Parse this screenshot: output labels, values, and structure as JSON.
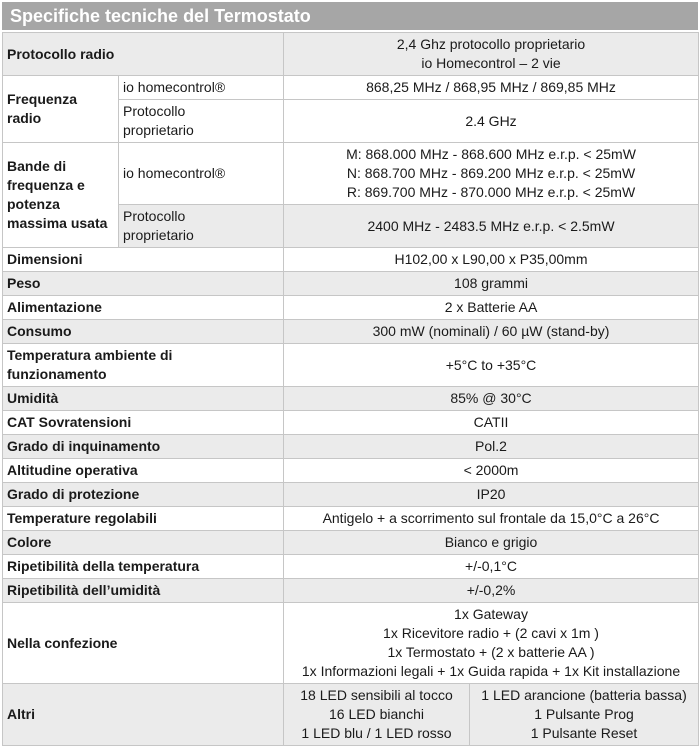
{
  "title": "Specifiche tecniche del Termostato",
  "colors": {
    "title_bg": "#a6a6a6",
    "title_fg": "#ffffff",
    "row_shaded": "#ebebeb",
    "border": "#c6c6c6",
    "text": "#1a1a1a"
  },
  "table": {
    "rows": [
      {
        "shaded": true,
        "cells": [
          {
            "type": "label",
            "colspan": 2,
            "lines": [
              "Protocollo radio"
            ]
          },
          {
            "type": "value",
            "colspan": 2,
            "lines": [
              "2,4 Ghz protocollo proprietario",
              "io Homecontrol – 2 vie"
            ]
          }
        ]
      },
      {
        "shaded": false,
        "cells": [
          {
            "type": "label",
            "rowspan": 2,
            "lines": [
              "Frequenza",
              "radio"
            ]
          },
          {
            "type": "sublabel",
            "lines": [
              "io homecontrol®"
            ]
          },
          {
            "type": "value",
            "colspan": 2,
            "lines": [
              "868,25 MHz / 868,95 MHz / 869,85 MHz"
            ]
          }
        ]
      },
      {
        "shaded": false,
        "cells": [
          {
            "type": "sublabel",
            "lines": [
              "Protocollo",
              "proprietario"
            ]
          },
          {
            "type": "value",
            "colspan": 2,
            "lines": [
              "2.4 GHz"
            ]
          }
        ]
      },
      {
        "shaded": false,
        "cells": [
          {
            "type": "label",
            "rowspan": 2,
            "lines": [
              "Bande di",
              "frequenza e",
              "potenza",
              "massima usata"
            ]
          },
          {
            "type": "sublabel",
            "lines": [
              "io homecontrol®"
            ]
          },
          {
            "type": "value",
            "colspan": 2,
            "lines": [
              "M: 868.000 MHz - 868.600 MHz e.r.p. < 25mW",
              "N: 868.700 MHz - 869.200 MHz e.r.p. < 25mW",
              "R: 869.700 MHz - 870.000 MHz e.r.p. < 25mW"
            ]
          }
        ]
      },
      {
        "shaded": true,
        "cells": [
          {
            "type": "sublabel",
            "lines": [
              "Protocollo",
              "proprietario"
            ]
          },
          {
            "type": "value",
            "colspan": 2,
            "lines": [
              "2400 MHz - 2483.5 MHz e.r.p. < 2.5mW"
            ]
          }
        ]
      },
      {
        "shaded": false,
        "cells": [
          {
            "type": "label",
            "colspan": 2,
            "lines": [
              "Dimensioni"
            ]
          },
          {
            "type": "value",
            "colspan": 2,
            "lines": [
              "H102,00 x L90,00 x P35,00mm"
            ]
          }
        ]
      },
      {
        "shaded": true,
        "cells": [
          {
            "type": "label",
            "colspan": 2,
            "lines": [
              "Peso"
            ]
          },
          {
            "type": "value",
            "colspan": 2,
            "lines": [
              "108 grammi"
            ]
          }
        ]
      },
      {
        "shaded": false,
        "cells": [
          {
            "type": "label",
            "colspan": 2,
            "lines": [
              "Alimentazione"
            ]
          },
          {
            "type": "value",
            "colspan": 2,
            "lines": [
              "2 x Batterie AA"
            ]
          }
        ]
      },
      {
        "shaded": true,
        "cells": [
          {
            "type": "label",
            "colspan": 2,
            "lines": [
              "Consumo"
            ]
          },
          {
            "type": "value",
            "colspan": 2,
            "lines": [
              "300 mW (nominali) / 60 µW (stand-by)"
            ]
          }
        ]
      },
      {
        "shaded": false,
        "cells": [
          {
            "type": "label",
            "colspan": 2,
            "lines": [
              "Temperatura ambiente di",
              "funzionamento"
            ]
          },
          {
            "type": "value",
            "colspan": 2,
            "lines": [
              "+5°C to +35°C"
            ]
          }
        ]
      },
      {
        "shaded": true,
        "cells": [
          {
            "type": "label",
            "colspan": 2,
            "lines": [
              "Umidità"
            ]
          },
          {
            "type": "value",
            "colspan": 2,
            "lines": [
              "85%  @ 30°C"
            ]
          }
        ]
      },
      {
        "shaded": false,
        "cells": [
          {
            "type": "label",
            "colspan": 2,
            "lines": [
              "CAT Sovratensioni"
            ]
          },
          {
            "type": "value",
            "colspan": 2,
            "lines": [
              "CATII"
            ]
          }
        ]
      },
      {
        "shaded": true,
        "cells": [
          {
            "type": "label",
            "colspan": 2,
            "lines": [
              "Grado di inquinamento"
            ]
          },
          {
            "type": "value",
            "colspan": 2,
            "lines": [
              "Pol.2"
            ]
          }
        ]
      },
      {
        "shaded": false,
        "cells": [
          {
            "type": "label",
            "colspan": 2,
            "lines": [
              "Altitudine operativa"
            ]
          },
          {
            "type": "value",
            "colspan": 2,
            "lines": [
              "< 2000m"
            ]
          }
        ]
      },
      {
        "shaded": true,
        "cells": [
          {
            "type": "label",
            "colspan": 2,
            "lines": [
              "Grado di protezione"
            ]
          },
          {
            "type": "value",
            "colspan": 2,
            "lines": [
              "IP20"
            ]
          }
        ]
      },
      {
        "shaded": false,
        "cells": [
          {
            "type": "label",
            "colspan": 2,
            "lines": [
              "Temperature regolabili"
            ]
          },
          {
            "type": "value",
            "colspan": 2,
            "lines": [
              "Antigelo + a scorrimento sul frontale da 15,0°C a 26°C"
            ]
          }
        ]
      },
      {
        "shaded": true,
        "cells": [
          {
            "type": "label",
            "colspan": 2,
            "lines": [
              "Colore"
            ]
          },
          {
            "type": "value",
            "colspan": 2,
            "lines": [
              "Bianco e grigio"
            ]
          }
        ]
      },
      {
        "shaded": false,
        "cells": [
          {
            "type": "label",
            "colspan": 2,
            "lines": [
              "Ripetibilità della temperatura"
            ]
          },
          {
            "type": "value",
            "colspan": 2,
            "lines": [
              "+/-0,1°C"
            ]
          }
        ]
      },
      {
        "shaded": true,
        "cells": [
          {
            "type": "label",
            "colspan": 2,
            "lines": [
              "Ripetibilità dell’umidità"
            ]
          },
          {
            "type": "value",
            "colspan": 2,
            "lines": [
              "+/-0,2%"
            ]
          }
        ]
      },
      {
        "shaded": false,
        "cells": [
          {
            "type": "label",
            "colspan": 2,
            "lines": [
              "Nella confezione"
            ]
          },
          {
            "type": "value",
            "colspan": 2,
            "lines": [
              "1x Gateway",
              "1x Ricevitore radio + (2 cavi x 1m )",
              "1x Termostato + (2 x batterie AA )",
              "1x Informazioni legali + 1x Guida rapida  + 1x Kit installazione"
            ]
          }
        ]
      },
      {
        "shaded": true,
        "cells": [
          {
            "type": "label",
            "colspan": 2,
            "lines": [
              "Altri"
            ]
          },
          {
            "type": "value",
            "lines": [
              "18 LED sensibili al tocco",
              "16 LED bianchi",
              "1 LED blu / 1 LED rosso"
            ]
          },
          {
            "type": "value2",
            "lines": [
              "1 LED arancione (batteria bassa)",
              "1 Pulsante Prog",
              "1 Pulsante Reset"
            ]
          }
        ]
      }
    ]
  }
}
